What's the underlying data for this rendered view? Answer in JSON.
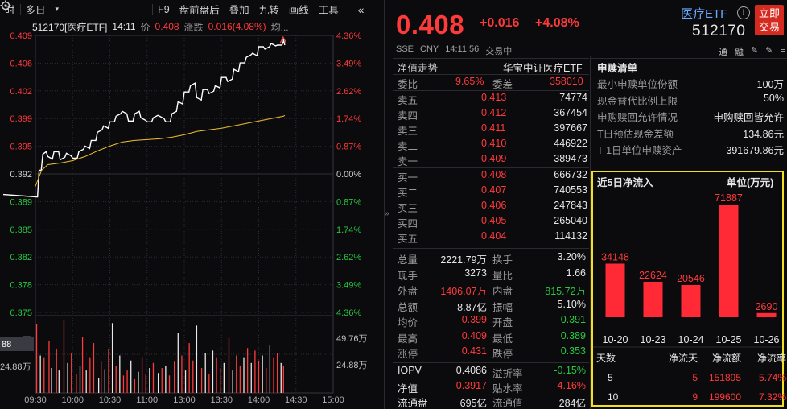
{
  "toolbar": {
    "items": [
      "时",
      "多日",
      "▾",
      "F9",
      "盘前盘后",
      "叠加",
      "九转",
      "画线",
      "工具"
    ],
    "settings_icon": "gear-icon",
    "collapse_icon": "double-chevron-left-icon"
  },
  "chart_header": {
    "code_name": "512170[医疗ETF]",
    "time": "14:11",
    "price_label": "价",
    "price": "0.408",
    "change_label": "涨跌",
    "change": "0.016(4.08%)",
    "more": "均..."
  },
  "chart_data": {
    "type": "line",
    "title": "",
    "prev_close": 0.392,
    "ylim": [
      0.3749,
      0.4092
    ],
    "y_ticks_left": [
      "0.409",
      "0.406",
      "0.402",
      "0.399",
      "0.395",
      "0.392",
      "0.389",
      "0.385",
      "0.382",
      "0.378",
      "0.375"
    ],
    "y_ticks_right": [
      "4.36%",
      "3.49%",
      "2.62%",
      "1.74%",
      "0.87%",
      "0.00%",
      "0.87%",
      "1.74%",
      "2.62%",
      "3.49%",
      "4.36%"
    ],
    "x_ticks": [
      "09:30",
      "10:00",
      "10:30",
      "11:00",
      "13:00",
      "13:30",
      "14:00",
      "14:30",
      "15:00"
    ],
    "series": [
      {
        "kind": "price",
        "color": "#ffffff",
        "minute_index": [
          0,
          3,
          6,
          10,
          15,
          20,
          25,
          30,
          35,
          40,
          45,
          50,
          55,
          60,
          65,
          70,
          75,
          80,
          85,
          90,
          95,
          100,
          105,
          110,
          115,
          120,
          125,
          130,
          135,
          140,
          145,
          150,
          155,
          160,
          165,
          170,
          175,
          180,
          185,
          190,
          195,
          200,
          201
        ],
        "values": [
          0.3895,
          0.3925,
          0.3945,
          0.3942,
          0.3948,
          0.3938,
          0.3946,
          0.394,
          0.3948,
          0.3955,
          0.3962,
          0.3972,
          0.398,
          0.3985,
          0.3992,
          0.3998,
          0.3986,
          0.3995,
          0.399,
          0.3985,
          0.399,
          0.3992,
          0.3985,
          0.3995,
          0.401,
          0.4022,
          0.403,
          0.4015,
          0.4025,
          0.402,
          0.403,
          0.404,
          0.4035,
          0.405,
          0.4058,
          0.4065,
          0.407,
          0.4078,
          0.4075,
          0.4082,
          0.408,
          0.4085,
          0.408
        ]
      },
      {
        "kind": "average",
        "color": "#f0c030",
        "minute_index": [
          0,
          5,
          10,
          20,
          30,
          40,
          50,
          60,
          70,
          80,
          90,
          100,
          110,
          120,
          130,
          140,
          150,
          160,
          170,
          180,
          190,
          200,
          201
        ],
        "values": [
          0.3905,
          0.3925,
          0.3932,
          0.3934,
          0.3937,
          0.3942,
          0.3949,
          0.3955,
          0.396,
          0.3962,
          0.3963,
          0.3964,
          0.3966,
          0.3969,
          0.3973,
          0.3975,
          0.3977,
          0.398,
          0.3983,
          0.3986,
          0.3989,
          0.3992,
          0.3993
        ]
      }
    ],
    "volume": {
      "y_ticks": [
        "49.76万",
        "24.88万"
      ],
      "cursor_readout": "88",
      "ylim": [
        0,
        62
      ],
      "minute_index": [
        1,
        4,
        7,
        11,
        13,
        17,
        19,
        23,
        26,
        29,
        33,
        36,
        38,
        41,
        44,
        47,
        51,
        53,
        56,
        59,
        62,
        65,
        68,
        71,
        74,
        77,
        80,
        83,
        86,
        89,
        92,
        95,
        99,
        102,
        105,
        108,
        112,
        115,
        118,
        121,
        124,
        127,
        130,
        134,
        137,
        140,
        143,
        146,
        149,
        152,
        156,
        159,
        162,
        165,
        168,
        171,
        174,
        177,
        180,
        183,
        186,
        189,
        192,
        195,
        198,
        200
      ],
      "values": [
        55,
        30,
        28,
        42,
        20,
        35,
        18,
        58,
        24,
        32,
        15,
        22,
        45,
        18,
        28,
        40,
        12,
        25,
        19,
        35,
        56,
        22,
        30,
        14,
        18,
        26,
        11,
        17,
        28,
        15,
        20,
        24,
        16,
        20,
        22,
        14,
        25,
        48,
        30,
        18,
        40,
        26,
        54,
        20,
        32,
        15,
        34,
        28,
        20,
        24,
        44,
        18,
        30,
        22,
        28,
        36,
        24,
        34,
        26,
        30,
        20,
        38,
        28,
        32,
        24,
        22
      ],
      "up": [
        true,
        false,
        true,
        true,
        false,
        true,
        false,
        true,
        false,
        true,
        true,
        false,
        true,
        false,
        true,
        true,
        false,
        true,
        false,
        true,
        false,
        true,
        false,
        true,
        true,
        false,
        true,
        false,
        true,
        true,
        false,
        true,
        false,
        true,
        false,
        true,
        true,
        false,
        true,
        false,
        true,
        true,
        false,
        true,
        false,
        true,
        false,
        true,
        true,
        false,
        true,
        false,
        true,
        true,
        false,
        true,
        false,
        true,
        true,
        false,
        true,
        false,
        true,
        true,
        false,
        true
      ]
    }
  },
  "quote": {
    "price": "0.408",
    "change": "+0.016",
    "change_pct": "+4.08%",
    "market": "SSE",
    "currency": "CNY",
    "time": "14:11:56",
    "status": "交易中",
    "name": "医疗ETF",
    "code": "512170",
    "trade_button": [
      "立即",
      "交易"
    ],
    "tools": [
      "通",
      "融",
      "✎",
      "✎",
      "≡"
    ]
  },
  "orderbook": {
    "nav_trend": "净值走势",
    "index_name": "华宝中证医疗ETF",
    "ratio_label": "委比",
    "ratio_value": "9.65%",
    "diff_label": "委差",
    "diff_value": "358010",
    "asks": [
      {
        "label": "卖五",
        "price": "0.413",
        "vol": "74774"
      },
      {
        "label": "卖四",
        "price": "0.412",
        "vol": "367454"
      },
      {
        "label": "卖三",
        "price": "0.411",
        "vol": "397667"
      },
      {
        "label": "卖二",
        "price": "0.410",
        "vol": "446922"
      },
      {
        "label": "卖一",
        "price": "0.409",
        "vol": "389473"
      }
    ],
    "bids": [
      {
        "label": "买一",
        "price": "0.408",
        "vol": "666732"
      },
      {
        "label": "买二",
        "price": "0.407",
        "vol": "740553"
      },
      {
        "label": "买三",
        "price": "0.406",
        "vol": "247843"
      },
      {
        "label": "买四",
        "price": "0.405",
        "vol": "265040"
      },
      {
        "label": "买五",
        "price": "0.404",
        "vol": "114132"
      }
    ]
  },
  "stats": [
    {
      "l1": "总量",
      "v1": "2221.79万",
      "c1": "white",
      "l2": "换手",
      "v2": "3.20%",
      "c2": "white"
    },
    {
      "l1": "现手",
      "v1": "3273",
      "c1": "white",
      "l2": "量比",
      "v2": "1.66",
      "c2": "white"
    },
    {
      "l1": "外盘",
      "v1": "1406.07万",
      "c1": "red",
      "l2": "内盘",
      "v2": "815.72万",
      "c2": "green"
    },
    {
      "l1": "总额",
      "v1": "8.87亿",
      "c1": "white",
      "l2": "振幅",
      "v2": "5.10%",
      "c2": "white"
    },
    {
      "l1": "均价",
      "v1": "0.399",
      "c1": "red",
      "l2": "开盘",
      "v2": "0.391",
      "c2": "green"
    },
    {
      "l1": "最高",
      "v1": "0.409",
      "c1": "red",
      "l2": "最低",
      "v2": "0.389",
      "c2": "green"
    },
    {
      "l1": "涨停",
      "v1": "0.431",
      "c1": "red",
      "l2": "跌停",
      "v2": "0.353",
      "c2": "green"
    }
  ],
  "iopv_stats": [
    {
      "l1": "IOPV",
      "v1": "0.4086",
      "c1": "white",
      "l2": "溢折率",
      "v2": "-0.15%",
      "c2": "green"
    },
    {
      "l1": "净值",
      "v1": "0.3917",
      "c1": "red",
      "l2": "贴水率",
      "v2": "4.16%",
      "c2": "red"
    },
    {
      "l1": "流通盘",
      "v1": "695亿",
      "c1": "white",
      "l2": "流通值",
      "v2": "284亿",
      "c2": "white"
    }
  ],
  "redemption": {
    "title": "申赎清单",
    "rows": [
      {
        "label": "最小申赎单位份额",
        "value": "100万"
      },
      {
        "label": "现金替代比例上限",
        "value": "50%"
      },
      {
        "label": "申购赎回允许情况",
        "value": "申购赎回皆允许"
      },
      {
        "label": "T日预估现金差额",
        "value": "134.86元"
      },
      {
        "label": "T-1日单位申赎资产",
        "value": "391679.86元"
      }
    ]
  },
  "net_inflow": {
    "title": "近5日净流入",
    "unit": "单位(万元)",
    "chart_data": {
      "type": "bar",
      "title": "近5日净流入",
      "categories": [
        "10-20",
        "10-23",
        "10-24",
        "10-25",
        "10-26"
      ],
      "values": [
        34148,
        22624,
        20546,
        71887,
        2690
      ],
      "ylim": [
        0,
        76000
      ],
      "color": "#ff2a35"
    },
    "table_headers": [
      "天数",
      "净流天",
      "净流额",
      "净流率"
    ],
    "table_rows": [
      [
        "5",
        "5",
        "151895",
        "5.74%"
      ],
      [
        "10",
        "9",
        "199600",
        "7.32%"
      ]
    ]
  }
}
